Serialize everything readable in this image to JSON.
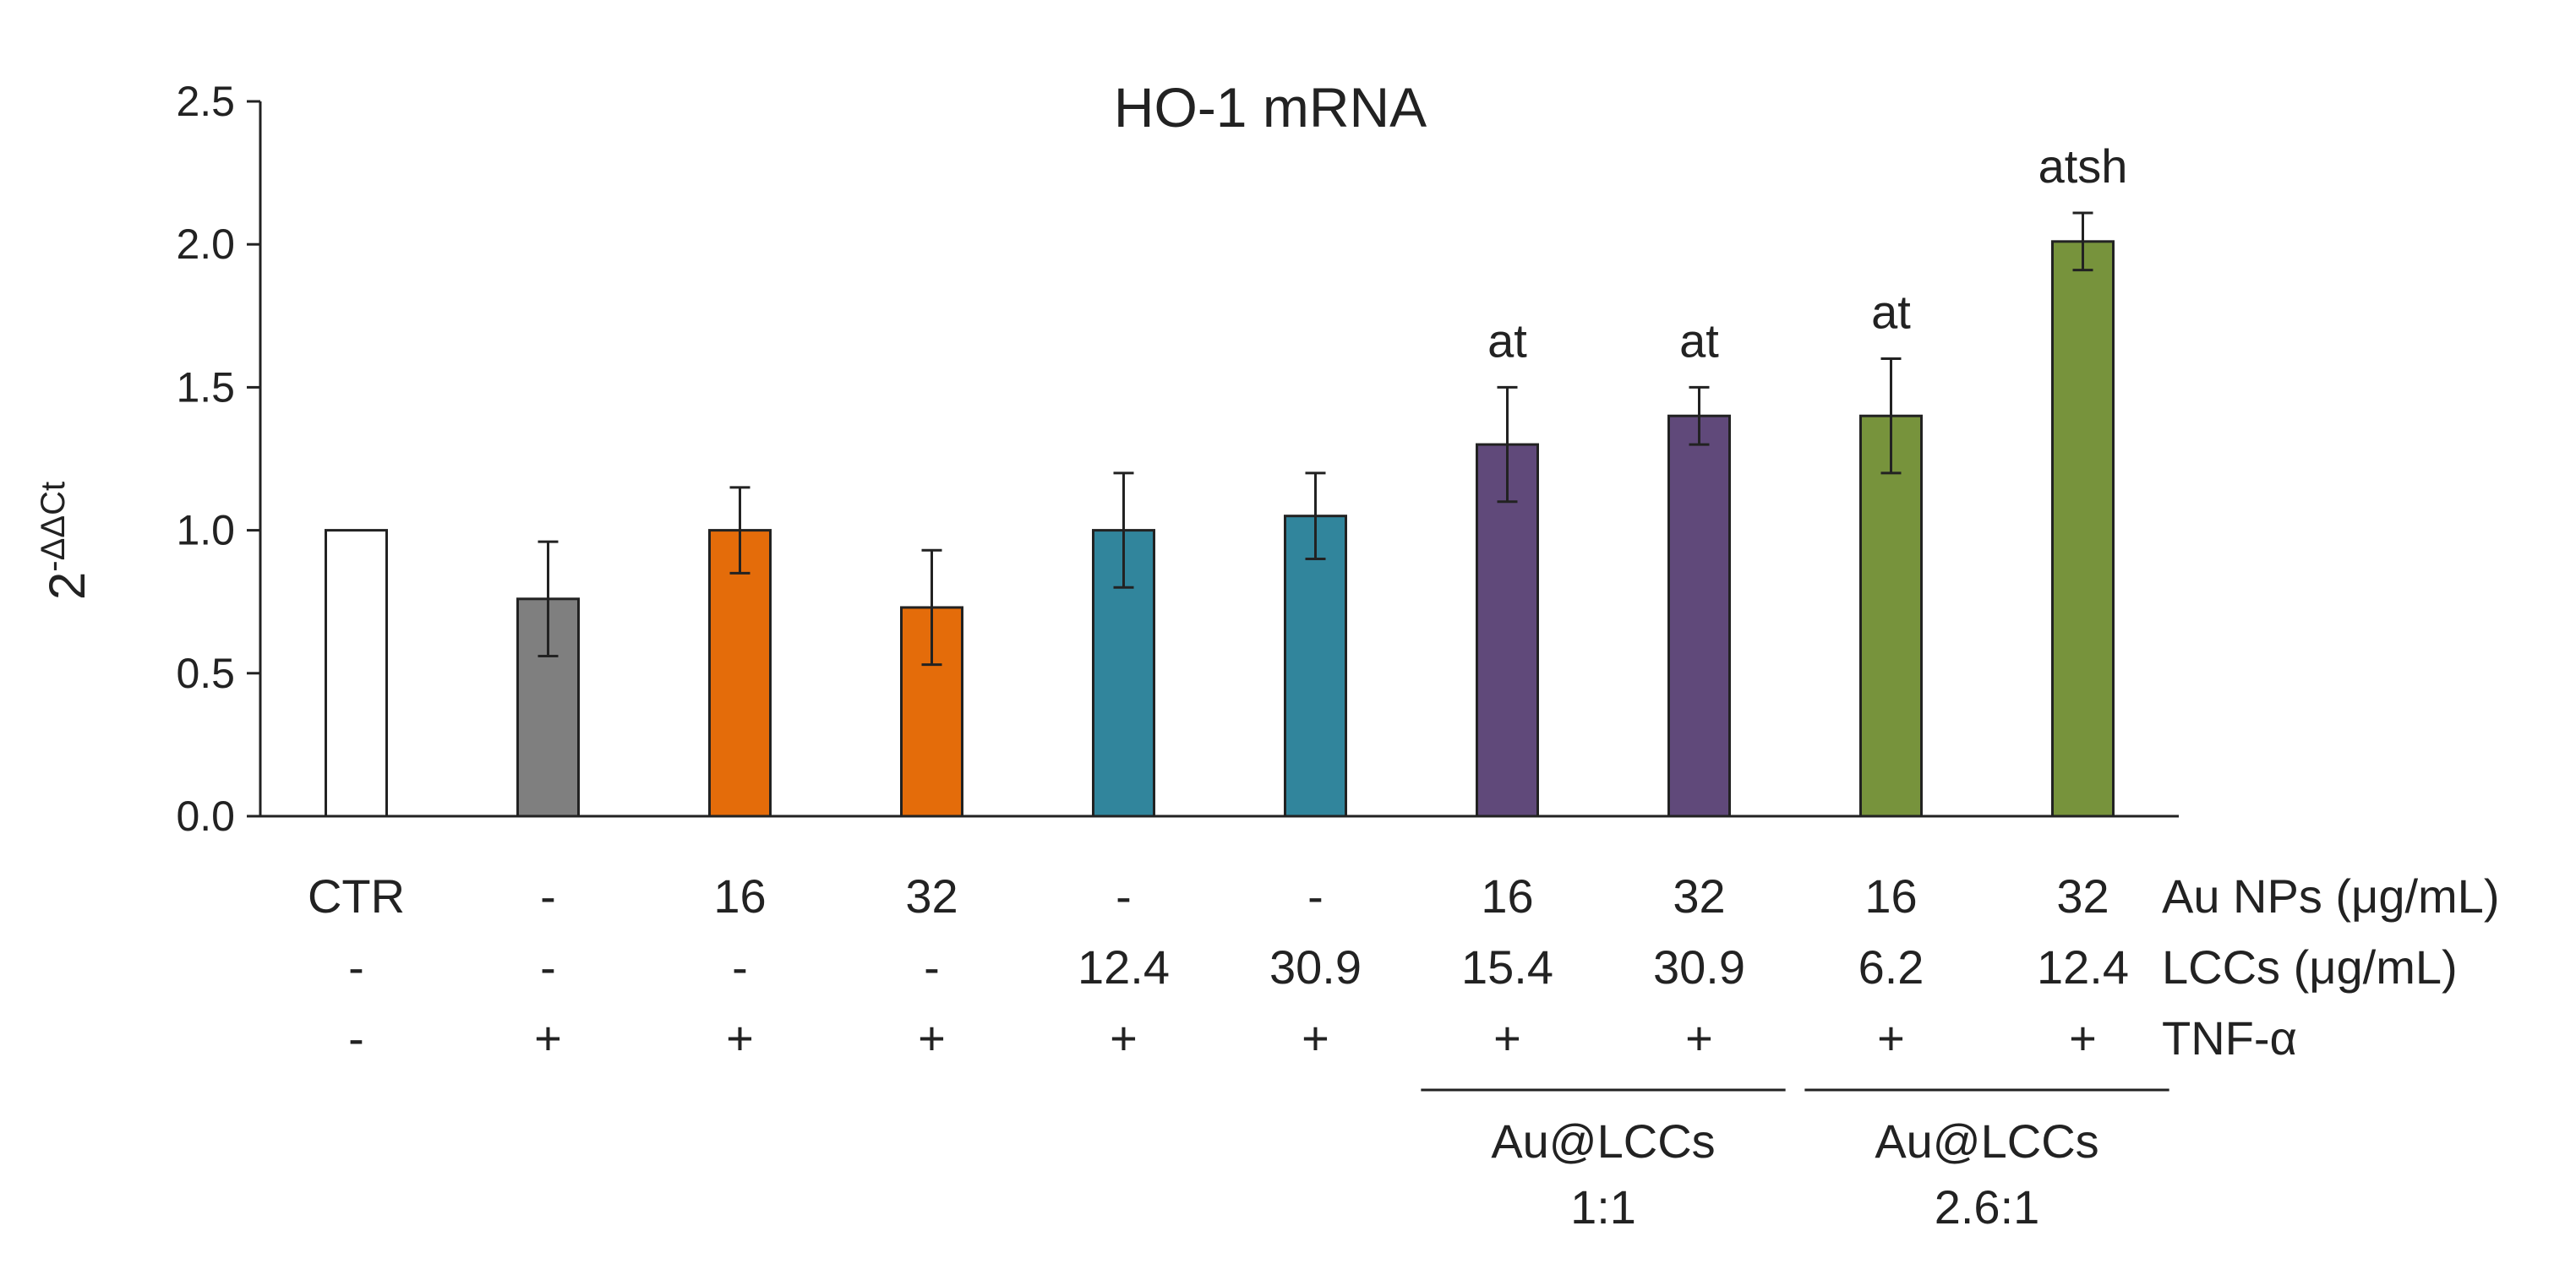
{
  "chart_data": {
    "type": "bar",
    "title": "HO-1 mRNA",
    "ylabel": {
      "base": "2",
      "superscript": "-ΔΔCt"
    },
    "ylim": [
      0.0,
      2.5
    ],
    "yticks": [
      "0.0",
      "0.5",
      "1.0",
      "1.5",
      "2.0",
      "2.5"
    ],
    "grid": false,
    "bars": [
      {
        "au": "CTR",
        "lcc": "-",
        "tnf": "-",
        "value": 1.0,
        "error": null,
        "color": "#ffffff",
        "significance": ""
      },
      {
        "au": "-",
        "lcc": "-",
        "tnf": "+",
        "value": 0.76,
        "error": 0.2,
        "color": "#7f7f7f",
        "significance": ""
      },
      {
        "au": "16",
        "lcc": "-",
        "tnf": "+",
        "value": 1.0,
        "error": 0.15,
        "color": "#e46c0a",
        "significance": ""
      },
      {
        "au": "32",
        "lcc": "-",
        "tnf": "+",
        "value": 0.73,
        "error": 0.2,
        "color": "#e46c0a",
        "significance": ""
      },
      {
        "au": "-",
        "lcc": "12.4",
        "tnf": "+",
        "value": 1.0,
        "error": 0.2,
        "color": "#31859c",
        "significance": ""
      },
      {
        "au": "-",
        "lcc": "30.9",
        "tnf": "+",
        "value": 1.05,
        "error": 0.15,
        "color": "#31859c",
        "significance": ""
      },
      {
        "au": "16",
        "lcc": "15.4",
        "tnf": "+",
        "value": 1.3,
        "error": 0.2,
        "color": "#60497a",
        "significance": "at"
      },
      {
        "au": "32",
        "lcc": "30.9",
        "tnf": "+",
        "value": 1.4,
        "error": 0.1,
        "color": "#60497a",
        "significance": "at"
      },
      {
        "au": "16",
        "lcc": "6.2",
        "tnf": "+",
        "value": 1.4,
        "error": 0.2,
        "color": "#77933c",
        "significance": "at"
      },
      {
        "au": "32",
        "lcc": "12.4",
        "tnf": "+",
        "value": 2.01,
        "error": 0.1,
        "color": "#77933c",
        "significance": "atsh"
      }
    ],
    "row_labels": {
      "au": "Au NPs (μg/mL)",
      "lcc": "LCCs (μg/mL)",
      "tnf": "TNF-α"
    },
    "groups": [
      {
        "line1": "Au@LCCs",
        "line2": "1:1",
        "bars": [
          6,
          7
        ]
      },
      {
        "line1": "Au@LCCs",
        "line2": "2.6:1",
        "bars": [
          8,
          9
        ]
      }
    ]
  }
}
